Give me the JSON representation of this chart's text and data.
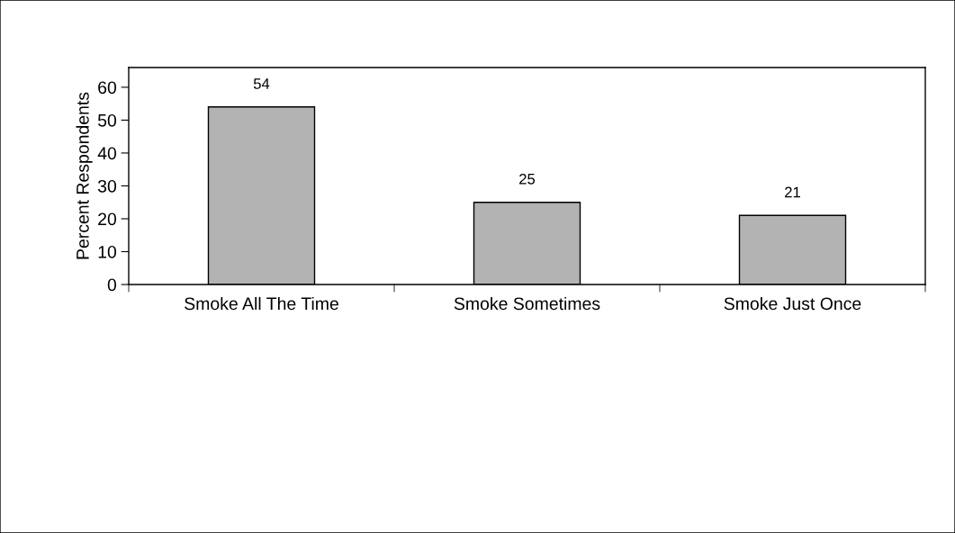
{
  "chart_data": {
    "type": "bar",
    "ylabel": "Percent Respondents",
    "categories": [
      "Smoke All The Time",
      "Smoke Sometimes",
      "Smoke Just Once"
    ],
    "values": [
      54,
      25,
      21
    ],
    "color": "#b3b3b3",
    "ylim": [
      0,
      66
    ],
    "yticks": [
      0,
      10,
      20,
      30,
      40,
      50,
      60
    ],
    "grid": false,
    "data_labels": true
  }
}
